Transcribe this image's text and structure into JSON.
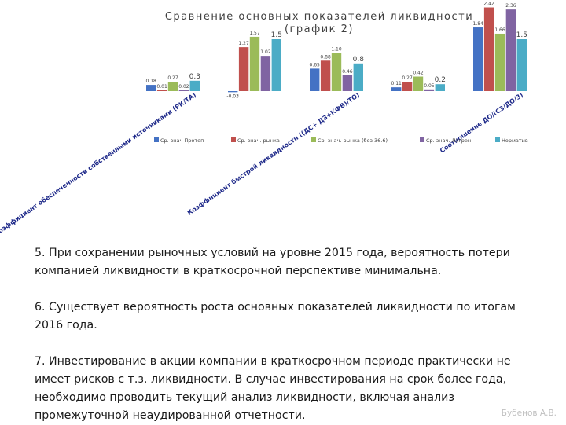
{
  "chart_data": {
    "type": "bar",
    "title": "Сравнение основных показателей ликвидности",
    "subtitle": "(график 2)",
    "categories": [
      "Коэффициент обеспеченности собственными источниками (РК/ТА)",
      "",
      "Коэффициент быстрой ликвидности ((ДС+ ДЗ+КФВ)/ТО)",
      "",
      "Соотношение ДО/(СЗ/ДО/З)"
    ],
    "series": [
      {
        "name": "Ср. знач Протеп",
        "values": [
          0.18,
          -0.03,
          0.65,
          0.11,
          1.84
        ],
        "labels": [
          "0.18",
          "-0.03",
          "0.65",
          "0.11",
          "1.84"
        ]
      },
      {
        "name": "Ср. знач. рынка",
        "values": [
          0.01,
          1.27,
          0.88,
          0.27,
          2.42
        ],
        "labels": [
          "0.01",
          "1.27",
          "0.88",
          "0.27",
          "2.42"
        ]
      },
      {
        "name": "Ср. знач. рынка (без 36.6)",
        "values": [
          0.27,
          1.57,
          1.1,
          0.42,
          1.66
        ],
        "labels": [
          "0.27",
          "1.57",
          "1.10",
          "0.42",
          "1.66"
        ]
      },
      {
        "name": "Ср. знач. Лагрен",
        "values": [
          0.02,
          1.02,
          0.46,
          0.05,
          2.36
        ],
        "labels": [
          "0.02",
          "1.02",
          "0.46",
          "0.05",
          "2.36"
        ]
      },
      {
        "name": "Норматив",
        "values": [
          0.3,
          1.5,
          0.8,
          0.2,
          1.5
        ],
        "labels": [
          "0.3",
          "1.5",
          "0.8",
          "0.2",
          "1.5"
        ]
      }
    ],
    "colors": [
      "#4472c4",
      "#c0504d",
      "#9bbb59",
      "#8064a2",
      "#4bacc6"
    ],
    "ylim": [
      0,
      2.5
    ],
    "legend_position": "bottom",
    "grid": false
  },
  "conclusions": [
    "5. При сохранении рыночных условий на уровне 2015 года, вероятность потери компанией ликвидности в краткосрочной перспективе минимальна.",
    "6. Существует вероятность роста основных показателей ликвидности по итогам 2016 года.",
    "7. Инвестирование в акции компании в краткосрочном периоде практически не имеет рисков с т.з. ликвидности. В случае инвестирования на срок более года, необходимо проводить текущий анализ ликвидности, включая анализ промежуточной неаудированной отчетности."
  ],
  "footer": {
    "author": "Бубенов А.В."
  }
}
